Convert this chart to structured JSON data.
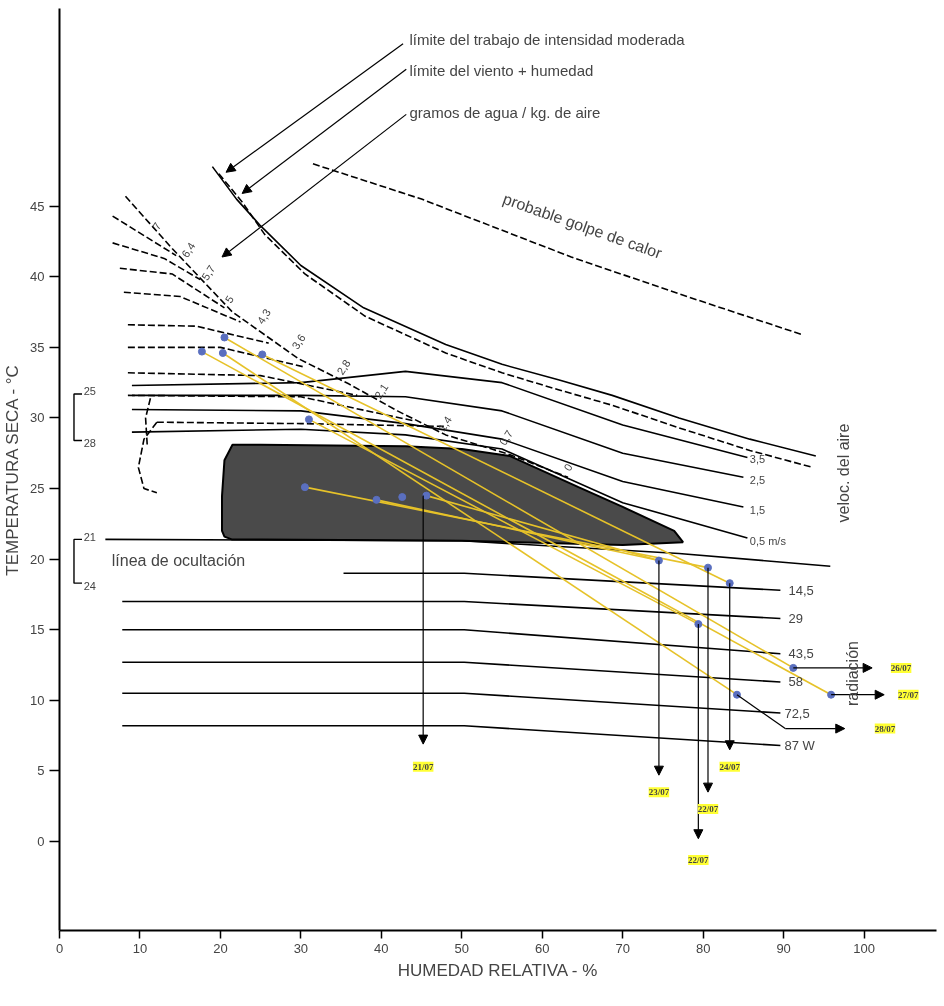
{
  "chart_data": {
    "type": "line",
    "xlabel": "HUMEDAD RELATIVA - %",
    "ylabel": "TEMPERATURA SECA - °C",
    "xlim": [
      0,
      109
    ],
    "ylim": [
      -6.3,
      59
    ],
    "xticks": [
      0,
      10,
      20,
      30,
      40,
      50,
      60,
      70,
      80,
      90,
      100
    ],
    "yticks": [
      0,
      5,
      10,
      15,
      20,
      25,
      30,
      35,
      40,
      45
    ],
    "grid": false,
    "series": [
      {
        "color": "#000000",
        "x": [
          19,
          22,
          25,
          30,
          37.8,
          48,
          55,
          62,
          68.7,
          77,
          85.8,
          94
        ],
        "values": [
          47.8,
          45.5,
          43.6,
          40.8,
          37.8,
          35.2,
          33.8,
          32.7,
          31.6,
          30,
          28.5,
          27.3
        ]
      },
      {
        "color": "#000000",
        "line_style": "dashed",
        "x": [
          19.8,
          22.7,
          25.5,
          30.5,
          38,
          48,
          55,
          62,
          68.7,
          77,
          85.8,
          93.6
        ],
        "values": [
          47.3,
          45.3,
          43,
          40.2,
          37.2,
          34.6,
          33.2,
          32,
          30.9,
          29.3,
          27.7,
          26.5
        ]
      },
      {
        "color": "#000000",
        "line_style": "dashed",
        "x": [
          31.5,
          45,
          63.6,
          78,
          92.3
        ],
        "values": [
          48,
          45.5,
          41.4,
          38.6,
          35.9
        ]
      },
      {
        "type": "area",
        "color": "#4a4a4a",
        "x": [
          20.2,
          20.5,
          21.5,
          25,
          43,
          50,
          56,
          64.5,
          70,
          76.4,
          77.5,
          70,
          50,
          25,
          21.4,
          20.5,
          20.2
        ],
        "values": [
          24.5,
          27,
          28.1,
          28.1,
          28,
          27.8,
          27.3,
          25.1,
          23.7,
          22,
          21.2,
          21,
          21.3,
          21.4,
          21.4,
          21.6,
          22
        ]
      },
      {
        "color": "#000000",
        "x": [
          5.7,
          50,
          77,
          95.8
        ],
        "values": [
          21.4,
          21.3,
          20.4,
          19.5
        ]
      },
      {
        "color": "#000000",
        "x": [
          35.3,
          50.3,
          89.6
        ],
        "values": [
          19,
          19,
          17.8
        ]
      },
      {
        "color": "#000000",
        "x": [
          7.8,
          50.3,
          89.6
        ],
        "values": [
          17,
          17,
          15.8
        ]
      },
      {
        "color": "#000000",
        "x": [
          7.8,
          50.3,
          89.6
        ],
        "values": [
          15,
          15,
          13.3
        ]
      },
      {
        "color": "#000000",
        "x": [
          7.8,
          50.3,
          89.6
        ],
        "values": [
          12.7,
          12.7,
          11.3
        ]
      },
      {
        "color": "#000000",
        "x": [
          7.8,
          50.3,
          89.6
        ],
        "values": [
          10.5,
          10.5,
          9.1
        ]
      },
      {
        "color": "#000000",
        "x": [
          7.8,
          50.3,
          89.6
        ],
        "values": [
          8.2,
          8.2,
          6.8
        ]
      },
      {
        "color": "#000000",
        "x": [
          9,
          30,
          43,
          55,
          70,
          85.5
        ],
        "values": [
          32.3,
          32.5,
          33.3,
          32.5,
          29.5,
          27.2
        ]
      },
      {
        "color": "#000000",
        "x": [
          9,
          30,
          43,
          55,
          70,
          85
        ],
        "values": [
          31.6,
          31.6,
          31.5,
          30.5,
          27.5,
          25.8
        ]
      },
      {
        "color": "#000000",
        "x": [
          9,
          30,
          43,
          55,
          70,
          85
        ],
        "values": [
          30.6,
          30.5,
          29.6,
          28.5,
          25.5,
          23.7
        ]
      },
      {
        "color": "#000000",
        "x": [
          9,
          30,
          43,
          55,
          70,
          85.5
        ],
        "values": [
          29,
          29.2,
          28.8,
          27.8,
          24,
          21.5
        ]
      },
      {
        "color": "#000000",
        "line_style": "dashed",
        "x": [
          8.2,
          14,
          21.5,
          29.7,
          36,
          42,
          48,
          56,
          63.2
        ],
        "values": [
          45.7,
          42,
          37.5,
          34.2,
          32.4,
          30.5,
          28.8,
          27.4,
          25.8
        ]
      },
      {
        "color": "#000000",
        "line_style": "dashed",
        "x": [
          6.6,
          14.5
        ],
        "values": [
          44.3,
          41.5
        ]
      },
      {
        "color": "#000000",
        "line_style": "dashed",
        "x": [
          6.6,
          13,
          17.5
        ],
        "values": [
          42.4,
          41.3,
          39.8
        ]
      },
      {
        "color": "#000000",
        "line_style": "dashed",
        "x": [
          7.5,
          14,
          20.5
        ],
        "values": [
          40.6,
          40.2,
          37.8
        ]
      },
      {
        "color": "#000000",
        "line_style": "dashed",
        "x": [
          8,
          15,
          22.5
        ],
        "values": [
          38.9,
          38.6,
          36.8
        ]
      },
      {
        "color": "#000000",
        "line_style": "dashed",
        "x": [
          8.5,
          17,
          26
        ],
        "values": [
          36.6,
          36.5,
          35.3
        ]
      },
      {
        "color": "#000000",
        "line_style": "dashed",
        "x": [
          8.5,
          20,
          30.5
        ],
        "values": [
          35,
          35,
          33.6
        ]
      },
      {
        "color": "#000000",
        "line_style": "dashed",
        "x": [
          8.5,
          25,
          37
        ],
        "values": [
          33.2,
          33,
          31.6
        ]
      },
      {
        "color": "#000000",
        "line_style": "dashed",
        "x": [
          8.5,
          30,
          44
        ],
        "values": [
          31.6,
          31.5,
          29.8
        ]
      },
      {
        "color": "#000000",
        "line_style": "dashed",
        "x": [
          12.1,
          10.5,
          9.8,
          10.5,
          12.1
        ],
        "values": [
          29.7,
          28.5,
          26.5,
          25,
          24.7
        ]
      },
      {
        "color": "#000000",
        "line_style": "dashed",
        "x": [
          12.1,
          30,
          48
        ],
        "values": [
          29.7,
          29.6,
          29.4
        ]
      },
      {
        "color": "#000000",
        "line_style": "dashed",
        "x": [
          11.3,
          10.7,
          10.9
        ],
        "values": [
          31.4,
          30,
          28.1
        ]
      },
      {
        "color": "#e6c229",
        "x": [
          20.5,
          91.2
        ],
        "values": [
          35.7,
          12.3
        ]
      },
      {
        "color": "#e6c229",
        "x": [
          17.7,
          95.9
        ],
        "values": [
          34.7,
          10.4
        ]
      },
      {
        "color": "#e6c229",
        "x": [
          20.3,
          84.2
        ],
        "values": [
          34.6,
          10.4
        ]
      },
      {
        "color": "#e6c229",
        "x": [
          25.2,
          83.3
        ],
        "values": [
          34.5,
          18.3
        ]
      },
      {
        "color": "#e6c229",
        "x": [
          31,
          79.4
        ],
        "values": [
          29.9,
          15.4
        ]
      },
      {
        "color": "#e6c229",
        "x": [
          30.5,
          80.6
        ],
        "values": [
          25.1,
          19.4
        ]
      },
      {
        "color": "#e6c229",
        "x": [
          39.4,
          74.5
        ],
        "values": [
          24.2,
          19.9
        ]
      },
      {
        "color": "#e6c229",
        "x": [
          45.6,
          74.5
        ],
        "values": [
          24.5,
          19.9
        ]
      },
      {
        "type": "scatter",
        "color": "#5a6fbf",
        "marker": "circle",
        "x": [
          17.7,
          20.5,
          20.3,
          25.2,
          31,
          30.5,
          39.4,
          42.6,
          45.6,
          74.5,
          80.6,
          83.3,
          79.4,
          91.2,
          95.9,
          84.2
        ],
        "values": [
          34.7,
          35.7,
          34.6,
          34.5,
          29.9,
          25.1,
          24.2,
          24.4,
          24.5,
          19.9,
          19.4,
          18.3,
          15.4,
          12.3,
          10.4,
          10.4
        ]
      }
    ],
    "annotations": [
      "límite del trabajo de intensidad moderada",
      "límite del viento + humedad",
      "gramos de agua / kg. de aire",
      "probable golpe de calor",
      "veloc. del aire",
      "radiación",
      "línea de ocultación",
      "3,5",
      "2,5",
      "1,5",
      "0,5 m/s",
      "14,5",
      "29",
      "43,5",
      "58",
      {
        "text": "72,5",
        "x": 89.6,
        "y": 9.1
      },
      {
        "text": "87 W",
        "x": 89.6,
        "y": 6.8
      },
      "7",
      "6,4",
      "5,7",
      "5",
      "4,3",
      "3,6",
      "2,8",
      "2,1",
      "1,4",
      "0,7",
      "0",
      "25",
      "28",
      "21",
      "24",
      "21/07",
      "23/07",
      "22/07",
      "22/07",
      "24/07",
      "26/07",
      "27/07",
      "28/07"
    ]
  }
}
